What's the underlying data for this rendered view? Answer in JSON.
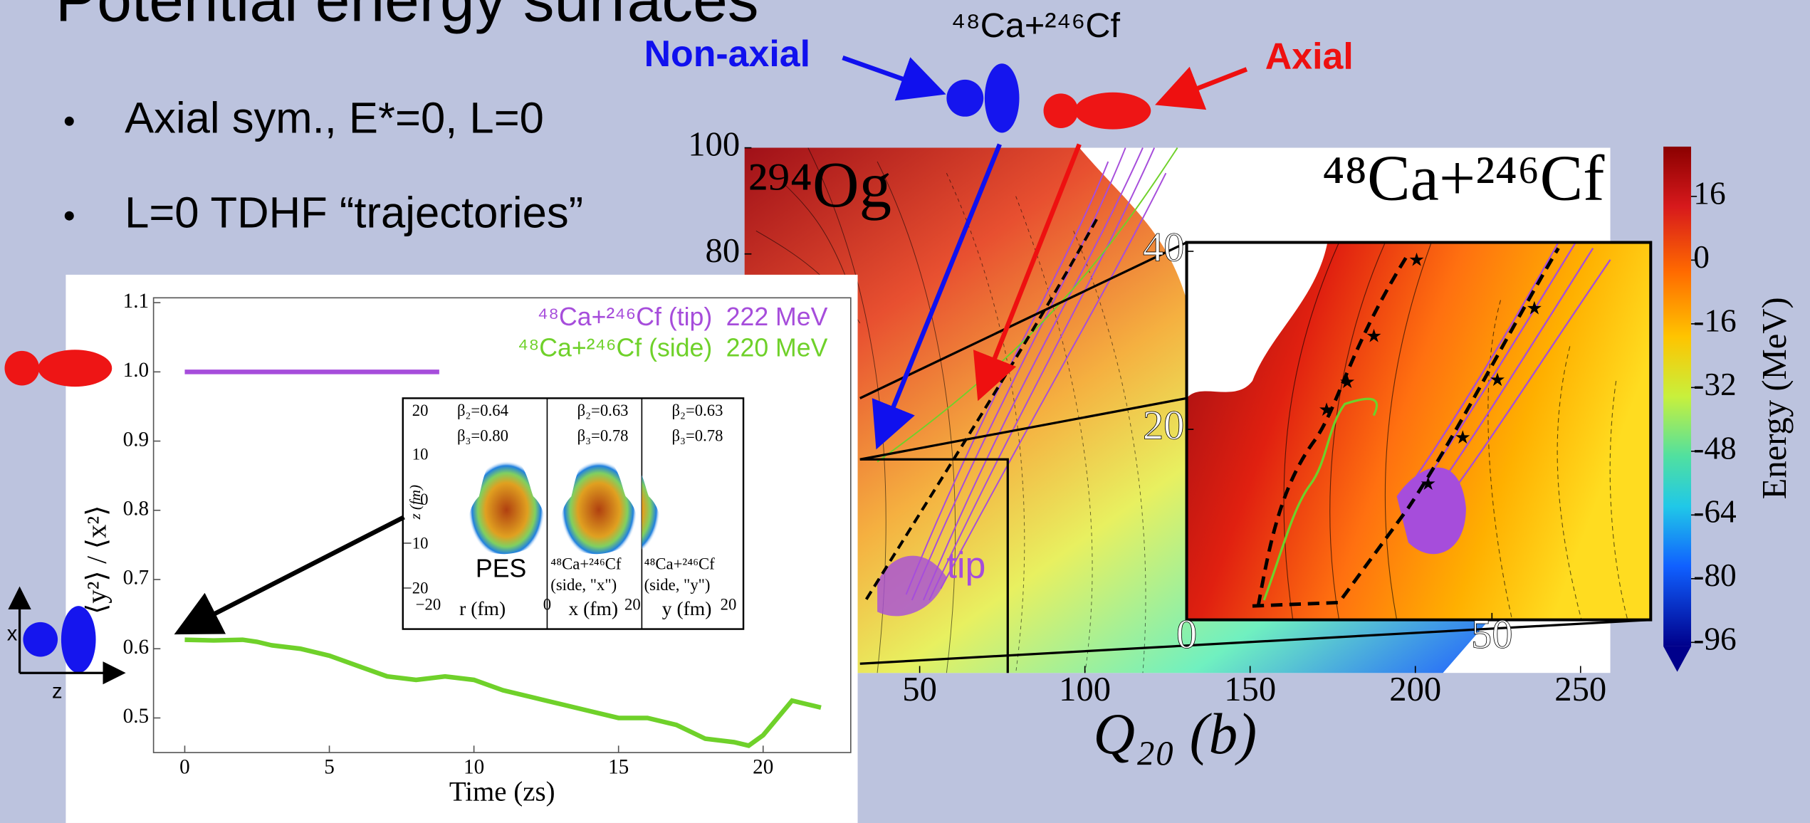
{
  "slide": {
    "title": "Potential energy surfaces",
    "bullets": [
      "Axial sym., E*=0, L=0",
      "L=0 TDHF “trajectories”"
    ],
    "top_label": "⁴⁸Ca+²⁴⁶Cf",
    "non_axial": "Non-axial",
    "axial": "Axial",
    "axis_x": "x",
    "axis_z": "z"
  },
  "chart_data": [
    {
      "type": "line",
      "xlabel": "Time (zs)",
      "ylabel": "⟨y²⟩ / ⟨x²⟩",
      "xlim": [
        -1.08,
        23.03
      ],
      "ylim": [
        0.45,
        1.107
      ],
      "xticks": [
        0,
        5,
        10,
        15,
        20
      ],
      "yticks": [
        0.5,
        0.6,
        0.7,
        0.8,
        0.9,
        {
          "value": 1,
          "label": "1.0"
        },
        1.1
      ],
      "series": [
        {
          "name": "⁴⁸Ca+²⁴⁶Cf (tip)",
          "energy": "222 MeV",
          "color": "#a64ddb",
          "x": [
            0,
            2,
            4,
            6,
            8,
            8.8
          ],
          "values": [
            1.0,
            1.0,
            1.0,
            1.0,
            1.0,
            1.0
          ]
        },
        {
          "name": "⁴⁸Ca+²⁴⁶Cf (side)",
          "energy": "220 MeV",
          "color": "#6fd12a",
          "x": [
            0,
            1,
            2,
            2.5,
            3,
            4,
            5,
            6,
            7,
            8,
            9,
            10,
            11,
            12,
            13,
            14,
            15,
            16,
            17,
            18,
            19,
            19.5,
            20,
            20.5,
            21,
            21.5,
            22
          ],
          "values": [
            0.613,
            0.612,
            0.613,
            0.61,
            0.605,
            0.6,
            0.59,
            0.575,
            0.56,
            0.555,
            0.56,
            0.555,
            0.54,
            0.53,
            0.52,
            0.51,
            0.5,
            0.5,
            0.49,
            0.47,
            0.465,
            0.46,
            0.475,
            0.5,
            0.525,
            0.52,
            0.515
          ]
        }
      ]
    },
    {
      "type": "contour",
      "title": "²⁹⁴Og",
      "subtitle": "⁴⁸Ca+²⁴⁶Cf",
      "xlabel": "Q₂₀ (b)",
      "xlim": [
        -3,
        259
      ],
      "ylim": [
        0,
        100
      ],
      "xticks": [
        50,
        100,
        150,
        200,
        250
      ],
      "yticks": [
        80,
        100
      ],
      "annotation": "tip",
      "colorbar": {
        "label": "Energy (MeV)",
        "lim": [
          -97,
          28.5
        ],
        "ticks": [
          16,
          0,
          -16,
          -32,
          -48,
          -64,
          -80,
          -96
        ]
      },
      "zoom": {
        "xlim": [
          0,
          76
        ],
        "ylim": [
          -1.4,
          41
        ],
        "xticks": [
          0,
          50
        ],
        "yticks": [
          20,
          40
        ]
      }
    }
  ],
  "density_inset": {
    "ylabel": "z (fm)",
    "yticks": [
      "20",
      "10",
      "0",
      "−10",
      "−20"
    ],
    "xticks": [
      "−20",
      "0",
      "20",
      "20"
    ],
    "xlabels": [
      "r (fm)",
      "x (fm)",
      "y (fm)"
    ],
    "panels": [
      {
        "beta2": "β₂=0.64",
        "beta3": "β₃=0.80",
        "label": [
          "PES"
        ]
      },
      {
        "beta2": "β₂=0.63",
        "beta3": "β₃=0.78",
        "label": [
          "⁴⁸Ca+²⁴⁶Cf",
          "(side, \"x\")"
        ]
      },
      {
        "beta2": "β₂=0.63",
        "beta3": "β₃=0.78",
        "label": [
          "⁴⁸Ca+²⁴⁶Cf",
          "(side, \"y\")"
        ]
      }
    ]
  }
}
